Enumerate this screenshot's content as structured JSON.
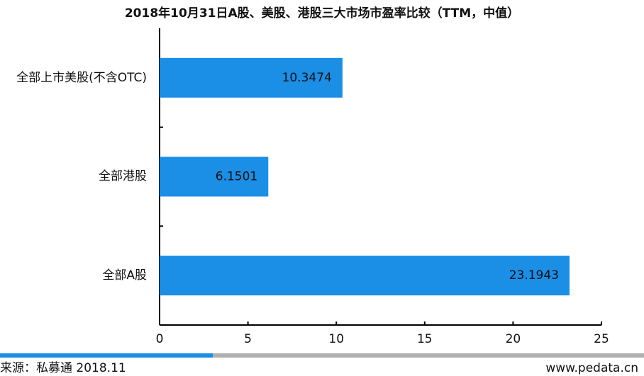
{
  "chart_data": {
    "type": "barh",
    "title": "2018年10月31日A股、美股、港股三大市场市盈率比较（TTM，中值）",
    "categories": [
      "全部上市美股(不含OTC)",
      "全部港股",
      "全部A股"
    ],
    "values": [
      10.3474,
      6.1501,
      23.1943
    ],
    "color": "#1b8ee6",
    "xlim": [
      0,
      25
    ],
    "xticks": [
      0,
      5,
      10,
      15,
      20,
      25
    ],
    "source": "来源：私募通 2018.11",
    "website": "www.pedata.cn"
  }
}
